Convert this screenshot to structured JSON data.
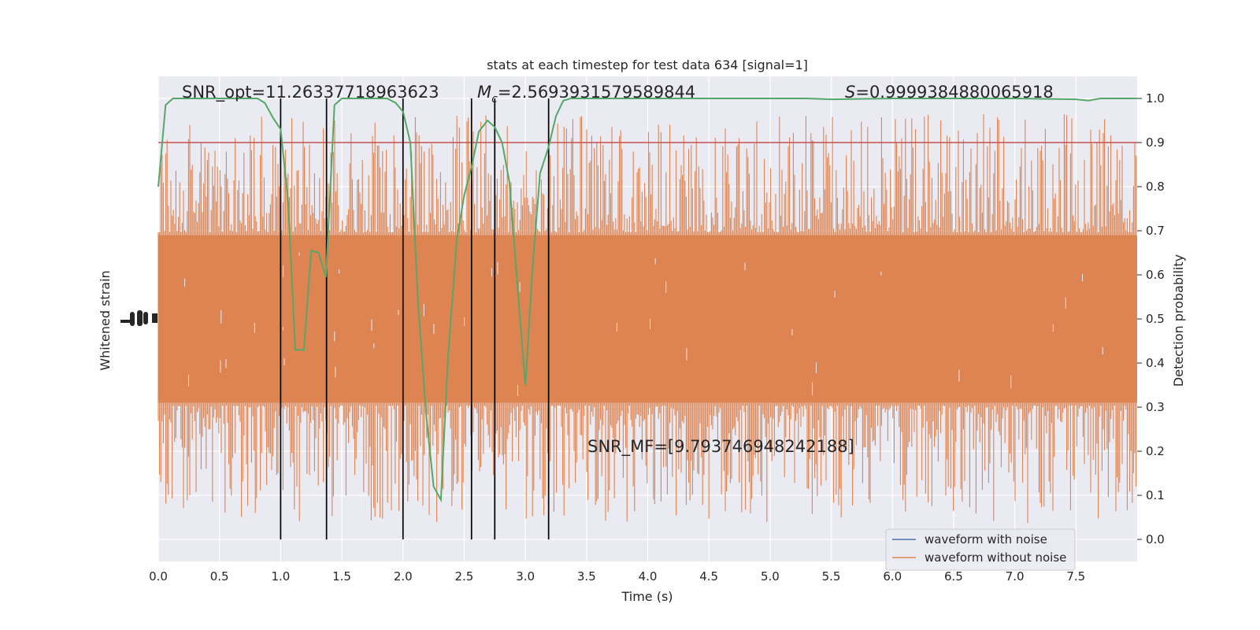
{
  "chart_data": {
    "type": "line",
    "title": "stats at each timestep for test data 634 [signal=1]",
    "xlabel": "Time (s)",
    "ylabel_left": "Whitened strain",
    "ylabel_right": "Detection probability",
    "xlim": [
      0.0,
      8.0
    ],
    "ylim_right": [
      -0.05,
      1.05
    ],
    "x_ticks": [
      "0.0",
      "0.5",
      "1.0",
      "1.5",
      "2.0",
      "2.5",
      "3.0",
      "3.5",
      "4.0",
      "4.5",
      "5.0",
      "5.5",
      "6.0",
      "6.5",
      "7.0",
      "7.5"
    ],
    "y_ticks_right": [
      "0.0",
      "0.1",
      "0.2",
      "0.3",
      "0.4",
      "0.5",
      "0.6",
      "0.7",
      "0.8",
      "0.9",
      "1.0"
    ],
    "grid": true,
    "legend_position": "lower-right",
    "annotations": {
      "snr_opt": "SNR_opt=11.26337718963623",
      "mc_symbol": "M",
      "mc_subscript": "c",
      "mc_value": "=2.5693931579589844",
      "s_symbol": "S",
      "s_value": "=0.9999384880065918",
      "snr_mf": "SNR_MF=[9.793746948242188]"
    },
    "threshold": 0.9,
    "vertical_markers": [
      1.0,
      1.375,
      2.0,
      2.56,
      2.75,
      3.19
    ],
    "series": [
      {
        "name": "waveform with noise",
        "color": "#4c72b0",
        "role": "strain"
      },
      {
        "name": "waveform without noise",
        "color": "#dd8452",
        "role": "strain"
      },
      {
        "color": "#55a868",
        "role": "probability",
        "x": [
          0.0,
          0.06,
          0.12,
          0.18,
          0.25,
          0.31,
          0.37,
          0.44,
          0.5,
          0.56,
          0.62,
          0.69,
          0.75,
          0.81,
          0.87,
          0.94,
          1.0,
          1.06,
          1.12,
          1.19,
          1.25,
          1.31,
          1.37,
          1.44,
          1.5,
          1.56,
          1.62,
          1.69,
          1.75,
          1.81,
          1.87,
          1.94,
          2.0,
          2.06,
          2.12,
          2.19,
          2.25,
          2.31,
          2.37,
          2.44,
          2.5,
          2.56,
          2.62,
          2.69,
          2.75,
          2.81,
          2.87,
          2.94,
          3.0,
          3.06,
          3.12,
          3.19,
          3.25,
          3.31,
          3.37,
          3.44,
          3.5,
          3.75,
          4.0,
          4.5,
          5.0,
          5.3,
          5.5,
          6.0,
          6.5,
          7.0,
          7.5,
          7.6,
          7.7,
          8.0
        ],
        "values": [
          0.8,
          0.985,
          1.0,
          1.0,
          1.0,
          1.0,
          1.0,
          1.0,
          1.0,
          1.0,
          1.0,
          1.0,
          1.0,
          1.0,
          0.99,
          0.955,
          0.93,
          0.77,
          0.43,
          0.43,
          0.655,
          0.65,
          0.595,
          0.985,
          1.0,
          1.0,
          1.0,
          1.0,
          1.0,
          1.0,
          1.0,
          0.99,
          0.97,
          0.9,
          0.55,
          0.28,
          0.12,
          0.09,
          0.42,
          0.68,
          0.78,
          0.845,
          0.925,
          0.95,
          0.935,
          0.9,
          0.81,
          0.56,
          0.35,
          0.62,
          0.83,
          0.89,
          0.96,
          0.995,
          1.0,
          1.0,
          1.0,
          1.0,
          1.0,
          1.0,
          1.0,
          1.0,
          0.998,
          1.0,
          1.0,
          1.0,
          0.998,
          0.995,
          1.0,
          1.0
        ]
      }
    ]
  }
}
